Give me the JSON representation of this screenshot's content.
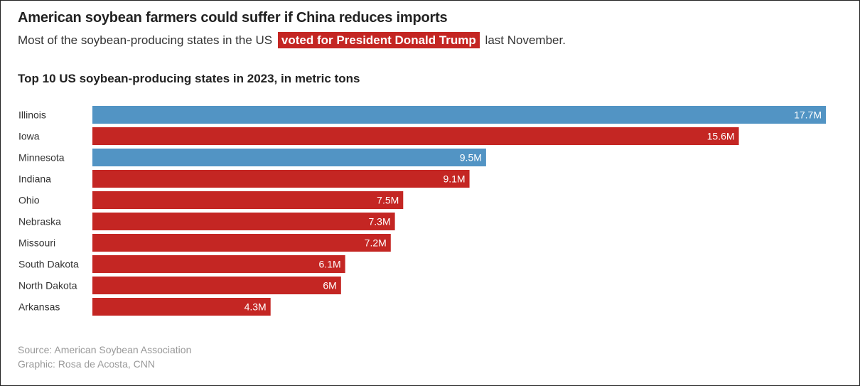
{
  "title": "American soybean farmers could suffer if China reduces imports",
  "subtitle": {
    "before": "Most of the soybean-producing states in the US",
    "highlight": "voted for President Donald Trump",
    "after": "last November."
  },
  "colors": {
    "highlight": "#c42623",
    "red": "#c42623",
    "blue": "#5294c4"
  },
  "chart_data": {
    "type": "bar",
    "orientation": "horizontal",
    "title": "Top 10 US soybean-producing states in 2023, in metric tons",
    "categories": [
      "Illinois",
      "Iowa",
      "Minnesota",
      "Indiana",
      "Ohio",
      "Nebraska",
      "Missouri",
      "South Dakota",
      "North Dakota",
      "Arkansas"
    ],
    "values": [
      17.7,
      15.6,
      9.5,
      9.1,
      7.5,
      7.3,
      7.2,
      6.1,
      6.0,
      4.3
    ],
    "labels": [
      "17.7M",
      "15.6M",
      "9.5M",
      "9.1M",
      "7.5M",
      "7.3M",
      "7.2M",
      "6.1M",
      "6M",
      "4.3M"
    ],
    "bar_colors": [
      "#5294c4",
      "#c42623",
      "#5294c4",
      "#c42623",
      "#c42623",
      "#c42623",
      "#c42623",
      "#c42623",
      "#c42623",
      "#c42623"
    ],
    "unit": "M metric tons",
    "xlim": [
      0,
      17.7
    ],
    "grid": false
  },
  "footer": {
    "source": "Source: American Soybean Association",
    "credit": "Graphic: Rosa de Acosta, CNN"
  }
}
